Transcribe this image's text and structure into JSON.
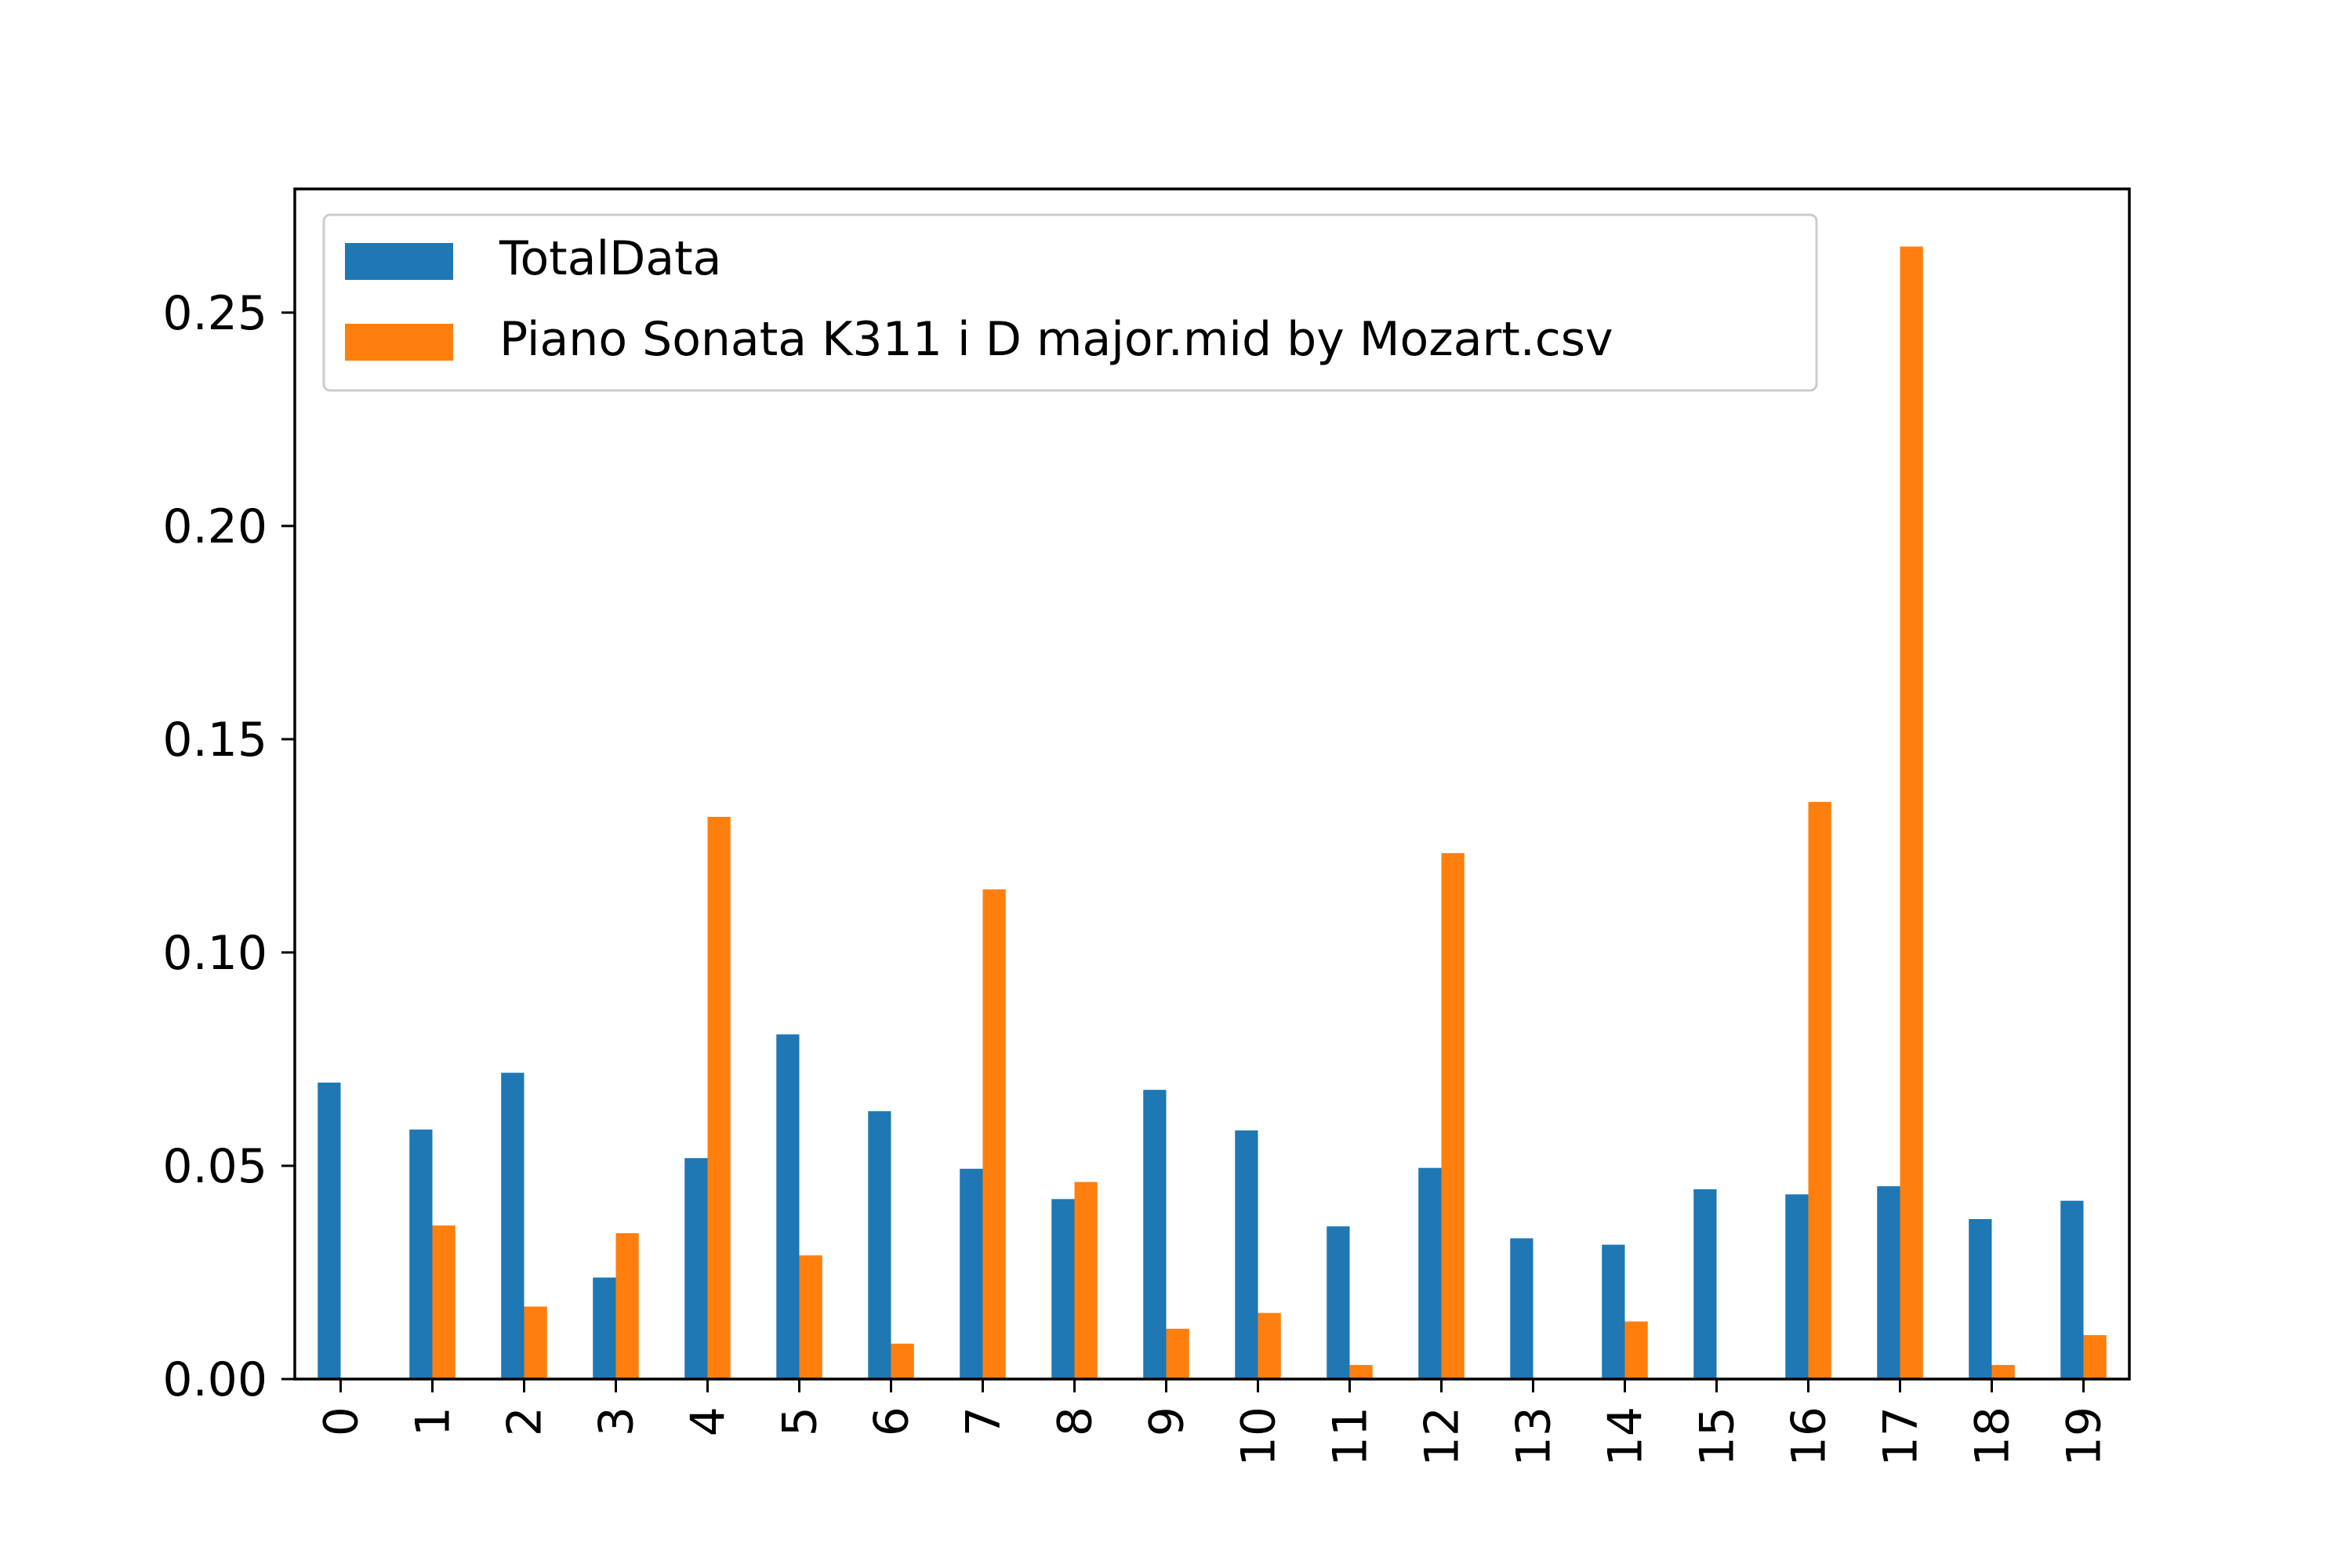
{
  "chart_data": {
    "type": "bar",
    "title": "",
    "xlabel": "",
    "ylabel": "",
    "categories": [
      "0",
      "1",
      "2",
      "3",
      "4",
      "5",
      "6",
      "7",
      "8",
      "9",
      "10",
      "11",
      "12",
      "13",
      "14",
      "15",
      "16",
      "17",
      "18",
      "19"
    ],
    "series": [
      {
        "name": "TotalData",
        "color": "#1f77b4",
        "values": [
          0.0695,
          0.0585,
          0.0718,
          0.0238,
          0.0518,
          0.0808,
          0.0628,
          0.0493,
          0.0422,
          0.0678,
          0.0583,
          0.0358,
          0.0495,
          0.033,
          0.0315,
          0.0445,
          0.0433,
          0.0452,
          0.0375,
          0.0418
        ]
      },
      {
        "name": "Piano Sonata K311 i D major.mid by Mozart.csv",
        "color": "#ff7f0e",
        "values": [
          0.0,
          0.036,
          0.017,
          0.0342,
          0.1318,
          0.029,
          0.0083,
          0.1148,
          0.0462,
          0.0118,
          0.0155,
          0.0033,
          0.1233,
          0.0,
          0.0135,
          0.0,
          0.1353,
          0.2655,
          0.0033,
          0.0103
        ]
      }
    ],
    "ylim": [
      0,
      0.279
    ],
    "yticks": [
      "0.00",
      "0.05",
      "0.10",
      "0.15",
      "0.20",
      "0.25"
    ],
    "legend_position": "top-left",
    "grid": false
  }
}
